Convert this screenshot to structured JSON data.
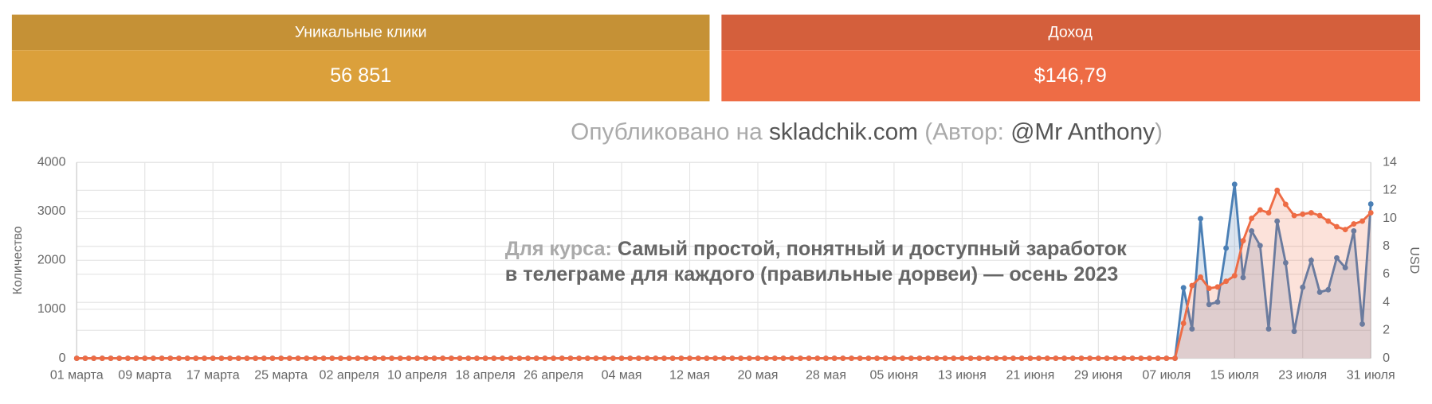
{
  "cards": [
    {
      "title": "Уникальные клики",
      "value": "56 851"
    },
    {
      "title": "Доход",
      "value": "$146,79"
    }
  ],
  "watermark": [
    "Опубликовано на ",
    "skladchik.com",
    " (Автор: ",
    "@Mr Anthony",
    ")"
  ],
  "overlay": {
    "prefix": "Для курса: ",
    "line1": "Самый простой, понятный и доступный заработок",
    "line2": "в телеграме для каждого (правильные дорвеи) — осень 2023"
  },
  "chart_data": {
    "type": "line",
    "ylabel": "Количество",
    "y2label": "USD",
    "grid": true,
    "ylim": [
      0,
      4000
    ],
    "yticks": [
      0,
      1000,
      2000,
      3000,
      4000
    ],
    "y2lim": [
      0,
      14
    ],
    "y2ticks": [
      0,
      2,
      4,
      6,
      8,
      10,
      12,
      14
    ],
    "categories": [
      "01 марта",
      null,
      null,
      null,
      null,
      null,
      null,
      null,
      "09 марта",
      null,
      null,
      null,
      null,
      null,
      null,
      null,
      "17 марта",
      null,
      null,
      null,
      null,
      null,
      null,
      null,
      "25 марта",
      null,
      null,
      null,
      null,
      null,
      null,
      null,
      "02 апреля",
      null,
      null,
      null,
      null,
      null,
      null,
      null,
      "10 апреля",
      null,
      null,
      null,
      null,
      null,
      null,
      null,
      "18 апреля",
      null,
      null,
      null,
      null,
      null,
      null,
      null,
      "26 апреля",
      null,
      null,
      null,
      null,
      null,
      null,
      null,
      "04 мая",
      null,
      null,
      null,
      null,
      null,
      null,
      null,
      "12 мая",
      null,
      null,
      null,
      null,
      null,
      null,
      null,
      "20 мая",
      null,
      null,
      null,
      null,
      null,
      null,
      null,
      "28 мая",
      null,
      null,
      null,
      null,
      null,
      null,
      null,
      "05 июня",
      null,
      null,
      null,
      null,
      null,
      null,
      null,
      "13 июня",
      null,
      null,
      null,
      null,
      null,
      null,
      null,
      "21 июня",
      null,
      null,
      null,
      null,
      null,
      null,
      null,
      "29 июня",
      null,
      null,
      null,
      null,
      null,
      null,
      null,
      "07 июля",
      null,
      null,
      null,
      null,
      null,
      null,
      null,
      "15 июля",
      null,
      null,
      null,
      null,
      null,
      null,
      null,
      "23 июля",
      null,
      null,
      null,
      null,
      null,
      null,
      null,
      "31 июля"
    ],
    "series": [
      {
        "color": "#4a7fb5",
        "axis": "y",
        "values": [
          0,
          0,
          0,
          0,
          0,
          0,
          0,
          0,
          0,
          0,
          0,
          0,
          0,
          0,
          0,
          0,
          0,
          0,
          0,
          0,
          0,
          0,
          0,
          0,
          0,
          0,
          0,
          0,
          0,
          0,
          0,
          0,
          0,
          0,
          0,
          0,
          0,
          0,
          0,
          0,
          0,
          0,
          0,
          0,
          0,
          0,
          0,
          0,
          0,
          0,
          0,
          0,
          0,
          0,
          0,
          0,
          0,
          0,
          0,
          0,
          0,
          0,
          0,
          0,
          0,
          0,
          0,
          0,
          0,
          0,
          0,
          0,
          0,
          0,
          0,
          0,
          0,
          0,
          0,
          0,
          0,
          0,
          0,
          0,
          0,
          0,
          0,
          0,
          0,
          0,
          0,
          0,
          0,
          0,
          0,
          0,
          0,
          0,
          0,
          0,
          0,
          0,
          0,
          0,
          0,
          0,
          0,
          0,
          0,
          0,
          0,
          0,
          0,
          0,
          0,
          0,
          0,
          0,
          0,
          0,
          0,
          0,
          0,
          0,
          0,
          0,
          0,
          0,
          0,
          0,
          1440,
          600,
          2850,
          1100,
          1150,
          2250,
          3550,
          1650,
          2600,
          2300,
          600,
          2800,
          1950,
          550,
          1450,
          2000,
          1350,
          1400,
          2050,
          1850,
          2600,
          700,
          3150
        ]
      },
      {
        "color": "#ee6c45",
        "axis": "y2",
        "values": [
          0,
          0,
          0,
          0,
          0,
          0,
          0,
          0,
          0,
          0,
          0,
          0,
          0,
          0,
          0,
          0,
          0,
          0,
          0,
          0,
          0,
          0,
          0,
          0,
          0,
          0,
          0,
          0,
          0,
          0,
          0,
          0,
          0,
          0,
          0,
          0,
          0,
          0,
          0,
          0,
          0,
          0,
          0,
          0,
          0,
          0,
          0,
          0,
          0,
          0,
          0,
          0,
          0,
          0,
          0,
          0,
          0,
          0,
          0,
          0,
          0,
          0,
          0,
          0,
          0,
          0,
          0,
          0,
          0,
          0,
          0,
          0,
          0,
          0,
          0,
          0,
          0,
          0,
          0,
          0,
          0,
          0,
          0,
          0,
          0,
          0,
          0,
          0,
          0,
          0,
          0,
          0,
          0,
          0,
          0,
          0,
          0,
          0,
          0,
          0,
          0,
          0,
          0,
          0,
          0,
          0,
          0,
          0,
          0,
          0,
          0,
          0,
          0,
          0,
          0,
          0,
          0,
          0,
          0,
          0,
          0,
          0,
          0,
          0,
          0,
          0,
          0,
          0,
          0,
          0,
          2.5,
          5.2,
          5.8,
          5.0,
          5.1,
          5.5,
          5.9,
          8.4,
          10.0,
          10.6,
          10.4,
          12.0,
          11.0,
          10.2,
          10.3,
          10.4,
          10.2,
          9.8,
          9.4,
          9.2,
          9.6,
          9.8,
          10.4
        ]
      }
    ]
  }
}
